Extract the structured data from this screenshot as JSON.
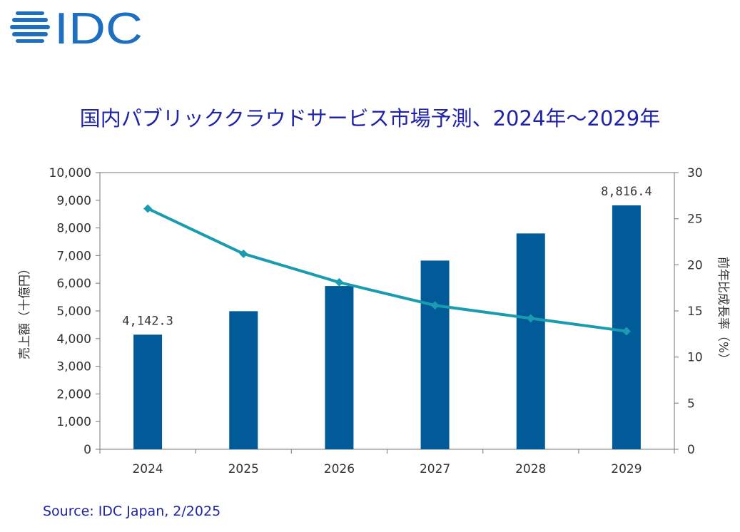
{
  "logo": {
    "text": "IDC",
    "color": "#1f6fc0"
  },
  "source": "Source: IDC Japan, 2/2025",
  "chart_data": {
    "type": "bar+line",
    "title": "国内パブリッククラウドサービス市場予測、2024年～2029年",
    "categories": [
      "2024",
      "2025",
      "2026",
      "2027",
      "2028",
      "2029"
    ],
    "series": [
      {
        "type": "bar",
        "axis": "left",
        "color": "#005b98",
        "values": [
          4142.3,
          4990,
          5900,
          6820,
          7800,
          8816.4
        ],
        "data_labels": [
          "4,142.3",
          "",
          "",
          "",
          "",
          "8,816.4"
        ]
      },
      {
        "type": "line",
        "axis": "right",
        "color": "#1a9bb0",
        "marker": "diamond",
        "values": [
          26.1,
          21.2,
          18.1,
          15.6,
          14.2,
          12.8
        ]
      }
    ],
    "y_left": {
      "label": "売上額（十億円）",
      "range": [
        0,
        10000
      ],
      "ticks": [
        "0",
        "1,000",
        "2,000",
        "3,000",
        "4,000",
        "5,000",
        "6,000",
        "7,000",
        "8,000",
        "9,000",
        "10,000"
      ]
    },
    "y_right": {
      "label": "前年比成長率（%）",
      "range": [
        0,
        30
      ],
      "ticks": [
        "0",
        "5",
        "10",
        "15",
        "20",
        "25",
        "30"
      ]
    },
    "grid": false,
    "legend": "none"
  }
}
